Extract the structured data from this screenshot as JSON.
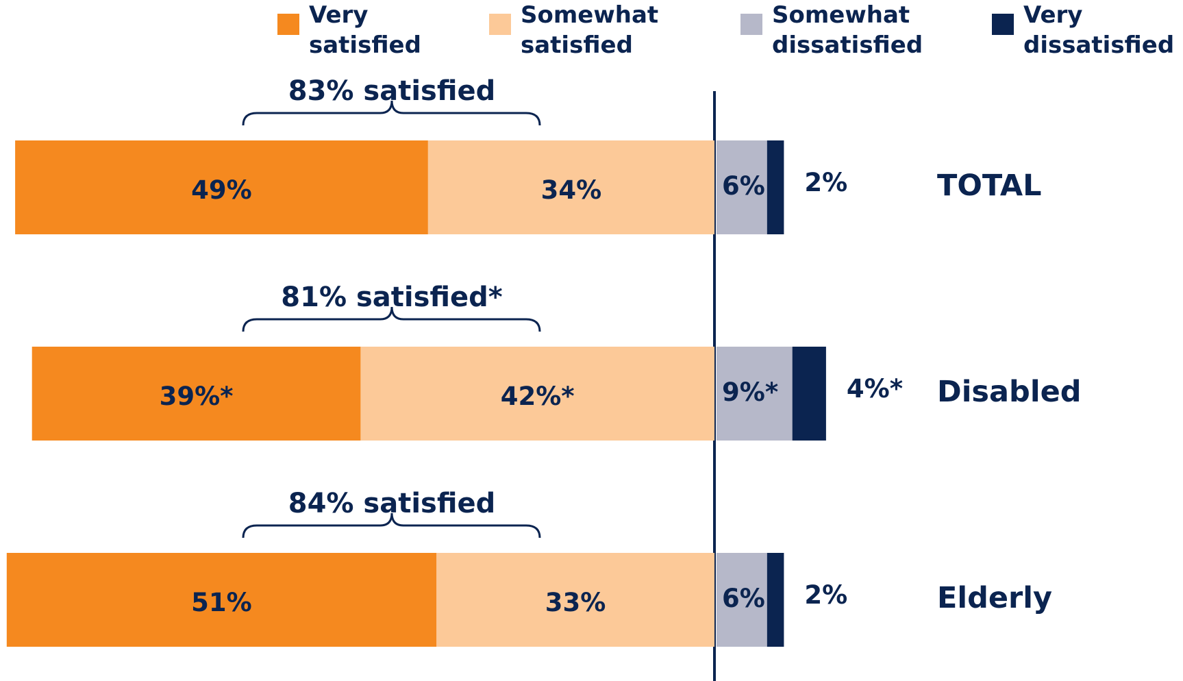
{
  "chart_data": {
    "type": "diverging_bar",
    "categories": [
      "TOTAL",
      "Disabled",
      "Elderly"
    ],
    "series": [
      {
        "name": "Very satisfied",
        "color": "#f5891f",
        "side": "left",
        "values": [
          49,
          39,
          51
        ],
        "value_labels": [
          "49%",
          "39%*",
          "51%"
        ]
      },
      {
        "name": "Somewhat satisfied",
        "color": "#fcc998",
        "side": "left",
        "values": [
          34,
          42,
          33
        ],
        "value_labels": [
          "34%",
          "42%*",
          "33%"
        ]
      },
      {
        "name": "Somewhat dissatisfied",
        "color": "#b6b8c9",
        "side": "right",
        "values": [
          6,
          9,
          6
        ],
        "value_labels": [
          "6%",
          "9%*",
          "6%"
        ]
      },
      {
        "name": "Very dissatisfied",
        "color": "#0b2450",
        "side": "right",
        "values": [
          2,
          4,
          2
        ],
        "value_labels": [
          "2%",
          "4%*",
          "2%"
        ]
      }
    ],
    "annotations": [
      "83% satisfied",
      "81% satisfied*",
      "84% satisfied"
    ]
  }
}
